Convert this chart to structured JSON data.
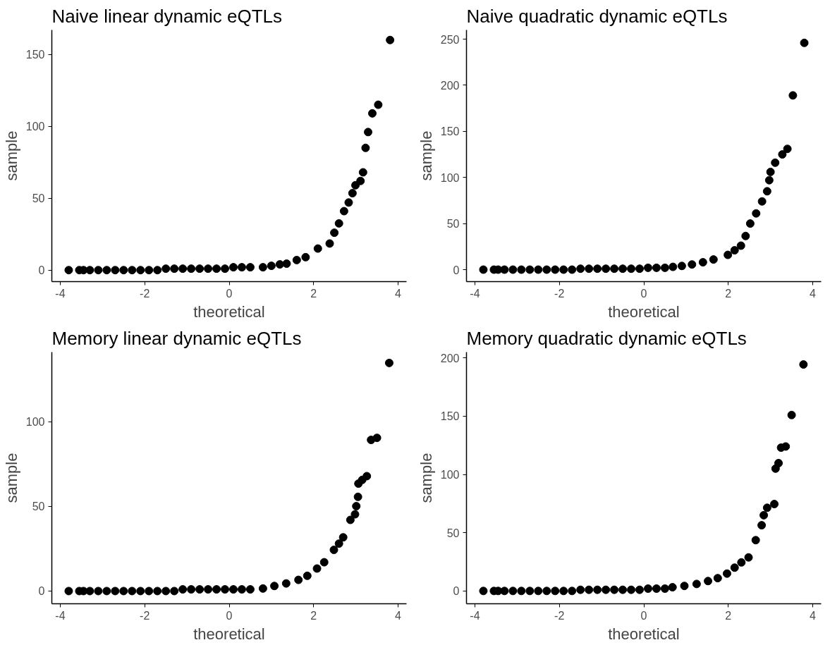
{
  "chart_data": [
    {
      "type": "scatter",
      "title": "Naive linear dynamic eQTLs",
      "xlabel": "theoretical",
      "ylabel": "sample",
      "xlim": [
        -4.2,
        4.2
      ],
      "ylim": [
        -8,
        167
      ],
      "xticks": [
        -4,
        -2,
        0,
        2,
        4
      ],
      "yticks": [
        0,
        50,
        100,
        150
      ],
      "grid": false,
      "marker": "circle",
      "series": [
        {
          "color": "#000000",
          "x": [
            -3.8,
            -3.55,
            -3.45,
            -3.3,
            -3.1,
            -2.9,
            -2.7,
            -2.5,
            -2.3,
            -2.1,
            -1.9,
            -1.7,
            -1.5,
            -1.3,
            -1.1,
            -0.9,
            -0.7,
            -0.5,
            -0.3,
            -0.1,
            0.1,
            0.3,
            0.5,
            0.8,
            1.0,
            1.2,
            1.36,
            1.6,
            1.81,
            2.1,
            2.38,
            2.49,
            2.6,
            2.72,
            2.83,
            2.92,
            2.99,
            3.11,
            3.17,
            3.23,
            3.29,
            3.39,
            3.53,
            3.81
          ],
          "values": [
            0,
            0,
            0,
            0,
            0,
            0,
            0,
            0,
            0,
            0,
            0,
            0,
            1,
            1,
            1,
            1,
            1,
            1,
            1,
            1,
            2,
            2,
            2,
            2,
            3,
            4,
            4.5,
            7,
            9,
            15,
            18.5,
            26,
            32.5,
            41,
            47,
            53.5,
            59,
            62,
            68,
            85,
            96,
            109,
            115,
            160
          ]
        }
      ]
    },
    {
      "type": "scatter",
      "title": "Naive quadratic dynamic eQTLs",
      "xlabel": "theoretical",
      "ylabel": "sample",
      "xlim": [
        -4.2,
        4.2
      ],
      "ylim": [
        -13,
        260
      ],
      "xticks": [
        -4,
        -2,
        0,
        2,
        4
      ],
      "yticks": [
        0,
        50,
        100,
        150,
        200,
        250
      ],
      "grid": false,
      "marker": "circle",
      "series": [
        {
          "color": "#000000",
          "x": [
            -3.8,
            -3.55,
            -3.45,
            -3.3,
            -3.1,
            -2.9,
            -2.7,
            -2.5,
            -2.3,
            -2.1,
            -1.9,
            -1.7,
            -1.5,
            -1.3,
            -1.1,
            -0.9,
            -0.7,
            -0.5,
            -0.3,
            -0.1,
            0.1,
            0.3,
            0.5,
            0.69,
            0.9,
            1.14,
            1.4,
            1.65,
            1.99,
            2.15,
            2.3,
            2.41,
            2.52,
            2.66,
            2.8,
            2.92,
            2.97,
            3.0,
            3.11,
            3.28,
            3.4,
            3.53,
            3.8
          ],
          "values": [
            0,
            0,
            0,
            0,
            0,
            0,
            0,
            0,
            0,
            0,
            0,
            0,
            1,
            1,
            1,
            1,
            1,
            1,
            1,
            1,
            2,
            2,
            2,
            3,
            4,
            5.6,
            8,
            11,
            16,
            21,
            26,
            36.5,
            50,
            61,
            74,
            85,
            97,
            106,
            116,
            125,
            131,
            189,
            246
          ]
        }
      ]
    },
    {
      "type": "scatter",
      "title": "Memory linear dynamic eQTLs",
      "xlabel": "theoretical",
      "ylabel": "sample",
      "xlim": [
        -4.2,
        4.2
      ],
      "ylim": [
        -7.5,
        141
      ],
      "xticks": [
        -4,
        -2,
        0,
        2,
        4
      ],
      "yticks": [
        0,
        50,
        100
      ],
      "grid": false,
      "marker": "circle",
      "series": [
        {
          "color": "#000000",
          "x": [
            -3.8,
            -3.55,
            -3.45,
            -3.3,
            -3.1,
            -2.9,
            -2.7,
            -2.5,
            -2.3,
            -2.1,
            -1.9,
            -1.7,
            -1.5,
            -1.3,
            -1.1,
            -0.9,
            -0.7,
            -0.5,
            -0.3,
            -0.1,
            0.1,
            0.3,
            0.5,
            0.8,
            1.07,
            1.35,
            1.64,
            1.85,
            2.08,
            2.25,
            2.48,
            2.6,
            2.7,
            2.87,
            2.98,
            3.01,
            3.05,
            3.06,
            3.15,
            3.26,
            3.36,
            3.5,
            3.79
          ],
          "values": [
            0,
            0,
            0,
            0,
            0,
            0,
            0,
            0,
            0,
            0,
            0,
            0,
            0,
            0,
            1,
            1,
            1,
            1,
            1,
            1,
            1,
            1,
            1,
            1.5,
            3,
            4.5,
            6.6,
            9,
            13.3,
            17,
            24.3,
            28,
            31.7,
            42,
            45.3,
            50.1,
            55.6,
            63.4,
            65.6,
            67.8,
            89.2,
            90.4,
            134.6
          ]
        }
      ]
    },
    {
      "type": "scatter",
      "title": "Memory quadratic dynamic eQTLs",
      "xlabel": "theoretical",
      "ylabel": "sample",
      "xlim": [
        -4.2,
        4.2
      ],
      "ylim": [
        -11,
        205
      ],
      "xticks": [
        -4,
        -2,
        0,
        2,
        4
      ],
      "yticks": [
        0,
        50,
        100,
        150,
        200
      ],
      "grid": false,
      "marker": "circle",
      "series": [
        {
          "color": "#000000",
          "x": [
            -3.8,
            -3.55,
            -3.45,
            -3.3,
            -3.1,
            -2.9,
            -2.7,
            -2.5,
            -2.3,
            -2.1,
            -1.9,
            -1.7,
            -1.5,
            -1.3,
            -1.1,
            -0.9,
            -0.7,
            -0.5,
            -0.3,
            -0.1,
            0.1,
            0.3,
            0.5,
            0.68,
            0.96,
            1.25,
            1.52,
            1.75,
            1.97,
            2.15,
            2.31,
            2.48,
            2.65,
            2.79,
            2.84,
            2.92,
            3.09,
            3.12,
            3.19,
            3.25,
            3.36,
            3.5,
            3.78
          ],
          "values": [
            0,
            0,
            0,
            0,
            0,
            0,
            0,
            0,
            0,
            0,
            0,
            0,
            1,
            1,
            1,
            1,
            1,
            1,
            1,
            1,
            2,
            2,
            2,
            3.2,
            4.3,
            6,
            8.5,
            11,
            14.9,
            20,
            24.5,
            28.8,
            43.6,
            56.4,
            65,
            71.4,
            74.6,
            105,
            109.7,
            123,
            124,
            151,
            194.4
          ]
        }
      ]
    }
  ]
}
